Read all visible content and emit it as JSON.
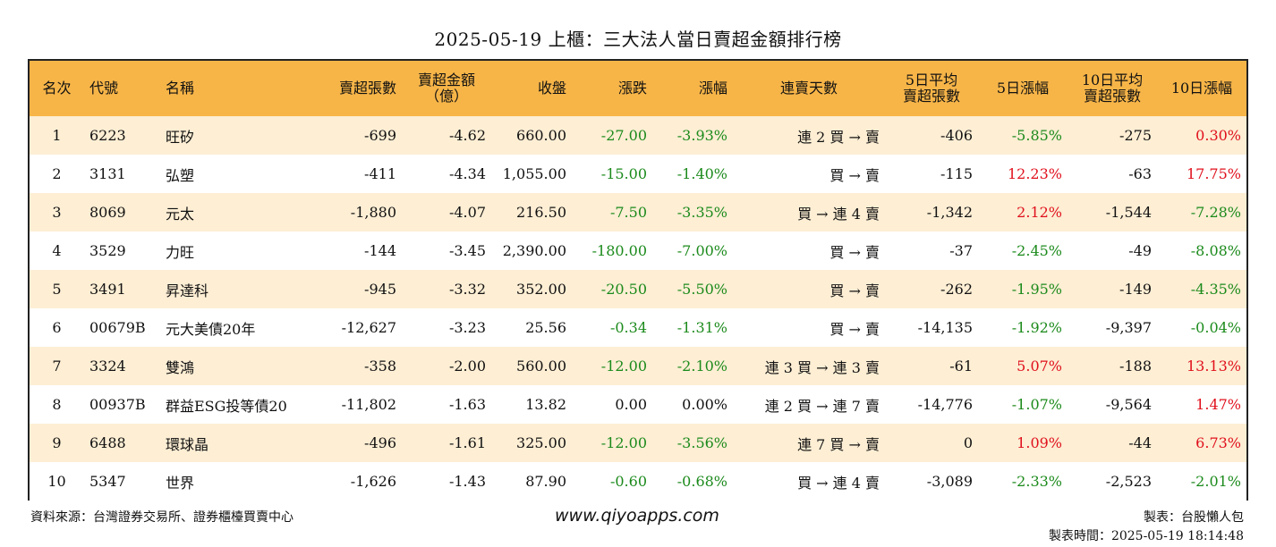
{
  "title": "2025-05-19 上櫃：三大法人當日賣超金額排行榜",
  "headers": {
    "rank": "名次",
    "code": "代號",
    "name": "名稱",
    "sell_shares": "賣超張數",
    "sell_amount_1": "賣超金額",
    "sell_amount_2": "（億）",
    "close": "收盤",
    "change": "漲跌",
    "pct": "漲幅",
    "streak": "連賣天數",
    "avg5_1": "5日平均",
    "avg5_2": "賣超張數",
    "pct5": "5日漲幅",
    "avg10_1": "10日平均",
    "avg10_2": "賣超張數",
    "pct10": "10日漲幅"
  },
  "colors": {
    "header_bg": "#f7b548",
    "row_alt_bg": "#fdeed4",
    "positive": "#e0101c",
    "negative": "#1b8a1b"
  },
  "rows": [
    {
      "rank": "1",
      "code": "6223",
      "name": "旺矽",
      "sell_shares": "-699",
      "sell_amount": "-4.62",
      "close": "660.00",
      "change": "-27.00",
      "change_color": "green",
      "pct": "-3.93%",
      "pct_color": "green",
      "streak": "連 2 買 → 賣",
      "avg5": "-406",
      "pct5": "-5.85%",
      "pct5_color": "green",
      "avg10": "-275",
      "pct10": "0.30%",
      "pct10_color": "red"
    },
    {
      "rank": "2",
      "code": "3131",
      "name": "弘塑",
      "sell_shares": "-411",
      "sell_amount": "-4.34",
      "close": "1,055.00",
      "change": "-15.00",
      "change_color": "green",
      "pct": "-1.40%",
      "pct_color": "green",
      "streak": "買 → 賣",
      "avg5": "-115",
      "pct5": "12.23%",
      "pct5_color": "red",
      "avg10": "-63",
      "pct10": "17.75%",
      "pct10_color": "red"
    },
    {
      "rank": "3",
      "code": "8069",
      "name": "元太",
      "sell_shares": "-1,880",
      "sell_amount": "-4.07",
      "close": "216.50",
      "change": "-7.50",
      "change_color": "green",
      "pct": "-3.35%",
      "pct_color": "green",
      "streak": "買 → 連 4 賣",
      "avg5": "-1,342",
      "pct5": "2.12%",
      "pct5_color": "red",
      "avg10": "-1,544",
      "pct10": "-7.28%",
      "pct10_color": "green"
    },
    {
      "rank": "4",
      "code": "3529",
      "name": "力旺",
      "sell_shares": "-144",
      "sell_amount": "-3.45",
      "close": "2,390.00",
      "change": "-180.00",
      "change_color": "green",
      "pct": "-7.00%",
      "pct_color": "green",
      "streak": "買 → 賣",
      "avg5": "-37",
      "pct5": "-2.45%",
      "pct5_color": "green",
      "avg10": "-49",
      "pct10": "-8.08%",
      "pct10_color": "green"
    },
    {
      "rank": "5",
      "code": "3491",
      "name": "昇達科",
      "sell_shares": "-945",
      "sell_amount": "-3.32",
      "close": "352.00",
      "change": "-20.50",
      "change_color": "green",
      "pct": "-5.50%",
      "pct_color": "green",
      "streak": "買 → 賣",
      "avg5": "-262",
      "pct5": "-1.95%",
      "pct5_color": "green",
      "avg10": "-149",
      "pct10": "-4.35%",
      "pct10_color": "green"
    },
    {
      "rank": "6",
      "code": "00679B",
      "name": "元大美債20年",
      "sell_shares": "-12,627",
      "sell_amount": "-3.23",
      "close": "25.56",
      "change": "-0.34",
      "change_color": "green",
      "pct": "-1.31%",
      "pct_color": "green",
      "streak": "買 → 賣",
      "avg5": "-14,135",
      "pct5": "-1.92%",
      "pct5_color": "green",
      "avg10": "-9,397",
      "pct10": "-0.04%",
      "pct10_color": "green"
    },
    {
      "rank": "7",
      "code": "3324",
      "name": "雙鴻",
      "sell_shares": "-358",
      "sell_amount": "-2.00",
      "close": "560.00",
      "change": "-12.00",
      "change_color": "green",
      "pct": "-2.10%",
      "pct_color": "green",
      "streak": "連 3 買 → 連 3 賣",
      "avg5": "-61",
      "pct5": "5.07%",
      "pct5_color": "red",
      "avg10": "-188",
      "pct10": "13.13%",
      "pct10_color": "red"
    },
    {
      "rank": "8",
      "code": "00937B",
      "name": "群益ESG投等債20",
      "sell_shares": "-11,802",
      "sell_amount": "-1.63",
      "close": "13.82",
      "change": "0.00",
      "change_color": "black",
      "pct": "0.00%",
      "pct_color": "black",
      "streak": "連 2 買 → 連 7 賣",
      "avg5": "-14,776",
      "pct5": "-1.07%",
      "pct5_color": "green",
      "avg10": "-9,564",
      "pct10": "1.47%",
      "pct10_color": "red"
    },
    {
      "rank": "9",
      "code": "6488",
      "name": "環球晶",
      "sell_shares": "-496",
      "sell_amount": "-1.61",
      "close": "325.00",
      "change": "-12.00",
      "change_color": "green",
      "pct": "-3.56%",
      "pct_color": "green",
      "streak": "連 7 買 → 賣",
      "avg5": "0",
      "pct5": "1.09%",
      "pct5_color": "red",
      "avg10": "-44",
      "pct10": "6.73%",
      "pct10_color": "red"
    },
    {
      "rank": "10",
      "code": "5347",
      "name": "世界",
      "sell_shares": "-1,626",
      "sell_amount": "-1.43",
      "close": "87.90",
      "change": "-0.60",
      "change_color": "green",
      "pct": "-0.68%",
      "pct_color": "green",
      "streak": "買 → 連 4 賣",
      "avg5": "-3,089",
      "pct5": "-2.33%",
      "pct5_color": "green",
      "avg10": "-2,523",
      "pct10": "-2.01%",
      "pct10_color": "green"
    }
  ],
  "footer": {
    "source": "資料來源：台灣證券交易所、證券櫃檯買賣中心",
    "website": "www.qiyoapps.com",
    "maker": "製表：台股懶人包",
    "time": "製表時間：2025-05-19 18:14:48"
  }
}
